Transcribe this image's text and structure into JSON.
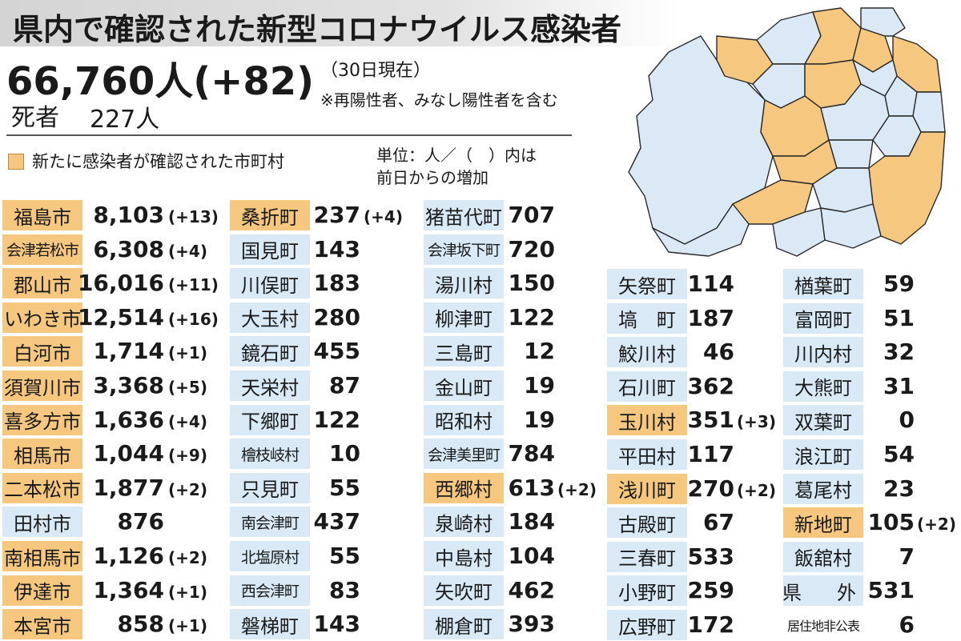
{
  "title": "県内で確認された新型コロナウイルス感染者",
  "summary": {
    "total": "66,760人(+82)",
    "as_of": "（30日現在）",
    "note": "※再陽性者、みなし陽性者を含む",
    "deaths_label": "死者",
    "deaths_value": "227人"
  },
  "legend": {
    "text": "新たに感染者が確認された市町村",
    "color": "#f6c77e"
  },
  "unit_note": [
    "単位：人／（　）内は",
    "前日からの増加"
  ],
  "colors": {
    "highlight": "#f6c77e",
    "normal": "#d9e9f5",
    "map_normal": "#dbe9f6",
    "map_border": "#2a2a2a"
  },
  "columns": [
    {
      "entries": [
        {
          "name": "福島市",
          "value": "8,103",
          "inc": "(+13)",
          "hl": true
        },
        {
          "name": "会津若松市",
          "value": "6,308",
          "inc": "(+4)",
          "hl": true,
          "narrow": true
        },
        {
          "name": "郡山市",
          "value": "16,016",
          "inc": "(+11)",
          "hl": true
        },
        {
          "name": "いわき市",
          "value": "12,514",
          "inc": "(+16)",
          "hl": true
        },
        {
          "name": "白河市",
          "value": "1,714",
          "inc": "(+1)",
          "hl": true
        },
        {
          "name": "須賀川市",
          "value": "3,368",
          "inc": "(+5)",
          "hl": true
        },
        {
          "name": "喜多方市",
          "value": "1,636",
          "inc": "(+4)",
          "hl": true
        },
        {
          "name": "相馬市",
          "value": "1,044",
          "inc": "(+9)",
          "hl": true
        },
        {
          "name": "二本松市",
          "value": "1,877",
          "inc": "(+2)",
          "hl": true
        },
        {
          "name": "田村市",
          "value": "876",
          "inc": "",
          "hl": false
        },
        {
          "name": "南相馬市",
          "value": "1,126",
          "inc": "(+2)",
          "hl": true
        },
        {
          "name": "伊達市",
          "value": "1,364",
          "inc": "(+1)",
          "hl": true
        },
        {
          "name": "本宮市",
          "value": "858",
          "inc": "(+1)",
          "hl": true
        }
      ]
    },
    {
      "entries": [
        {
          "name": "桑折町",
          "value": "237",
          "inc": "(+4)",
          "hl": true
        },
        {
          "name": "国見町",
          "value": "143",
          "inc": "",
          "hl": false
        },
        {
          "name": "川俣町",
          "value": "183",
          "inc": "",
          "hl": false
        },
        {
          "name": "大玉村",
          "value": "280",
          "inc": "",
          "hl": false
        },
        {
          "name": "鏡石町",
          "value": "455",
          "inc": "",
          "hl": false
        },
        {
          "name": "天栄村",
          "value": "87",
          "inc": "",
          "hl": false
        },
        {
          "name": "下郷町",
          "value": "122",
          "inc": "",
          "hl": false
        },
        {
          "name": "檜枝岐村",
          "value": "10",
          "inc": "",
          "hl": false,
          "narrow": true
        },
        {
          "name": "只見町",
          "value": "55",
          "inc": "",
          "hl": false
        },
        {
          "name": "南会津町",
          "value": "437",
          "inc": "",
          "hl": false,
          "narrow": true
        },
        {
          "name": "北塩原村",
          "value": "55",
          "inc": "",
          "hl": false,
          "narrow": true
        },
        {
          "name": "西会津町",
          "value": "83",
          "inc": "",
          "hl": false,
          "narrow": true
        },
        {
          "name": "磐梯町",
          "value": "143",
          "inc": "",
          "hl": false
        }
      ]
    },
    {
      "entries": [
        {
          "name": "猪苗代町",
          "value": "707",
          "inc": "",
          "hl": false
        },
        {
          "name": "会津坂下町",
          "value": "720",
          "inc": "",
          "hl": false,
          "narrow": true
        },
        {
          "name": "湯川村",
          "value": "150",
          "inc": "",
          "hl": false
        },
        {
          "name": "柳津町",
          "value": "122",
          "inc": "",
          "hl": false
        },
        {
          "name": "三島町",
          "value": "12",
          "inc": "",
          "hl": false
        },
        {
          "name": "金山町",
          "value": "19",
          "inc": "",
          "hl": false
        },
        {
          "name": "昭和村",
          "value": "19",
          "inc": "",
          "hl": false
        },
        {
          "name": "会津美里町",
          "value": "784",
          "inc": "",
          "hl": false,
          "narrow": true
        },
        {
          "name": "西郷村",
          "value": "613",
          "inc": "(+2)",
          "hl": true
        },
        {
          "name": "泉崎村",
          "value": "184",
          "inc": "",
          "hl": false
        },
        {
          "name": "中島村",
          "value": "104",
          "inc": "",
          "hl": false
        },
        {
          "name": "矢吹町",
          "value": "462",
          "inc": "",
          "hl": false
        },
        {
          "name": "棚倉町",
          "value": "393",
          "inc": "",
          "hl": false
        }
      ]
    },
    {
      "entries": [
        {
          "name": "矢祭町",
          "value": "114",
          "inc": "",
          "hl": false
        },
        {
          "name": "塙　町",
          "value": "187",
          "inc": "",
          "hl": false
        },
        {
          "name": "鮫川村",
          "value": "46",
          "inc": "",
          "hl": false
        },
        {
          "name": "石川町",
          "value": "362",
          "inc": "",
          "hl": false
        },
        {
          "name": "玉川村",
          "value": "351",
          "inc": "(+3)",
          "hl": true
        },
        {
          "name": "平田村",
          "value": "117",
          "inc": "",
          "hl": false
        },
        {
          "name": "浅川町",
          "value": "270",
          "inc": "(+2)",
          "hl": true
        },
        {
          "name": "古殿町",
          "value": "67",
          "inc": "",
          "hl": false
        },
        {
          "name": "三春町",
          "value": "533",
          "inc": "",
          "hl": false
        },
        {
          "name": "小野町",
          "value": "259",
          "inc": "",
          "hl": false
        },
        {
          "name": "広野町",
          "value": "172",
          "inc": "",
          "hl": false
        }
      ]
    },
    {
      "entries": [
        {
          "name": "楢葉町",
          "value": "59",
          "inc": "",
          "hl": false
        },
        {
          "name": "富岡町",
          "value": "51",
          "inc": "",
          "hl": false
        },
        {
          "name": "川内村",
          "value": "32",
          "inc": "",
          "hl": false
        },
        {
          "name": "大熊町",
          "value": "31",
          "inc": "",
          "hl": false
        },
        {
          "name": "双葉町",
          "value": "0",
          "inc": "",
          "hl": false
        },
        {
          "name": "浪江町",
          "value": "54",
          "inc": "",
          "hl": false
        },
        {
          "name": "葛尾村",
          "value": "23",
          "inc": "",
          "hl": false
        },
        {
          "name": "新地町",
          "value": "105",
          "inc": "(+2)",
          "hl": true
        },
        {
          "name": "飯舘村",
          "value": "7",
          "inc": "",
          "hl": false
        },
        {
          "name": "県　外",
          "value": "531",
          "inc": "",
          "hl": false,
          "spaced": true
        },
        {
          "name": "居住地非公表",
          "value": "6",
          "inc": "",
          "hl": false,
          "tiny": true
        }
      ]
    }
  ]
}
